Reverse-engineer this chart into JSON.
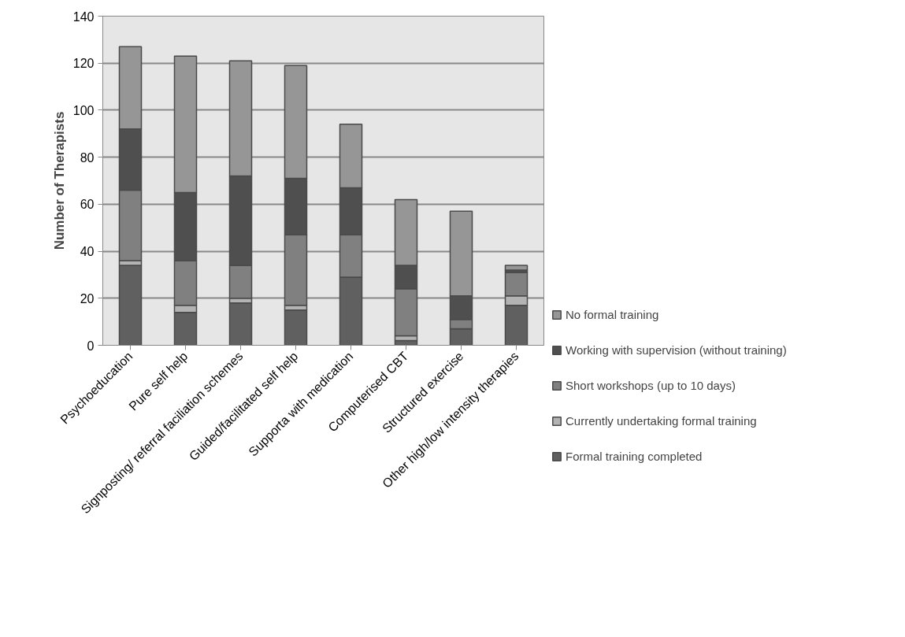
{
  "chart_data": {
    "type": "bar",
    "stacked": true,
    "ylabel": "Number of Therapists",
    "categories": [
      "Psychoeducation",
      "Pure self help",
      "Signposting/ referral faciliation schemes",
      "Guided/facilitated self help",
      "Supporta with medication",
      "Computerised CBT",
      "Structured exercise",
      "Other high/low intensity therapies"
    ],
    "series": [
      {
        "name": "Formal training completed",
        "color": "#606060",
        "values": [
          34,
          14,
          18,
          15,
          29,
          2,
          7,
          17
        ]
      },
      {
        "name": "Currently undertaking formal training",
        "color": "#b3b3b3",
        "values": [
          2,
          3,
          2,
          2,
          0,
          2,
          0,
          4
        ]
      },
      {
        "name": "Short workshops (up to 10 days)",
        "color": "#808080",
        "values": [
          30,
          19,
          14,
          30,
          18,
          20,
          4,
          10
        ]
      },
      {
        "name": "Working with supervision (without training)",
        "color": "#4f4f4f",
        "values": [
          26,
          29,
          38,
          24,
          20,
          10,
          10,
          1
        ]
      },
      {
        "name": "No formal training",
        "color": "#969696",
        "values": [
          35,
          58,
          49,
          48,
          27,
          28,
          36,
          2
        ]
      }
    ],
    "ylim": [
      0,
      140
    ],
    "yticks": [
      0,
      20,
      40,
      60,
      80,
      100,
      120,
      140
    ],
    "grid": "y",
    "legend": "right"
  }
}
